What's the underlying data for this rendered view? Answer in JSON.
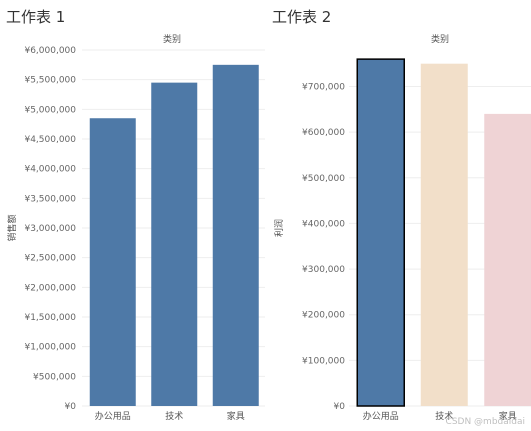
{
  "chart_data": [
    {
      "type": "bar",
      "title": "工作表 1",
      "column_header": "类别",
      "ylabel": "销售额",
      "categories": [
        "办公用品",
        "技术",
        "家具"
      ],
      "values": [
        4850000,
        5450000,
        5750000
      ],
      "ylim": [
        0,
        6000000
      ],
      "yticks": [
        "¥0",
        "¥500,000",
        "¥1,000,000",
        "¥1,500,000",
        "¥2,000,000",
        "¥2,500,000",
        "¥3,000,000",
        "¥3,500,000",
        "¥4,000,000",
        "¥4,500,000",
        "¥5,000,000",
        "¥5,500,000",
        "¥6,000,000"
      ],
      "bar_colors": [
        "#4e79a7",
        "#4e79a7",
        "#4e79a7"
      ],
      "grid": true
    },
    {
      "type": "bar",
      "title": "工作表 2",
      "column_header": "类别",
      "ylabel": "利润",
      "categories": [
        "办公用品",
        "技术",
        "家具"
      ],
      "values": [
        760000,
        750000,
        640000
      ],
      "ylim": [
        0,
        780000
      ],
      "yticks": [
        "¥0",
        "¥100,000",
        "¥200,000",
        "¥300,000",
        "¥400,000",
        "¥500,000",
        "¥600,000",
        "¥700,000"
      ],
      "bar_colors": [
        "#4e79a7",
        "#f2dfc9",
        "#efd3d5"
      ],
      "highlighted_bar": 0,
      "grid": true
    }
  ],
  "watermark": "CSDN @mbdaidai"
}
